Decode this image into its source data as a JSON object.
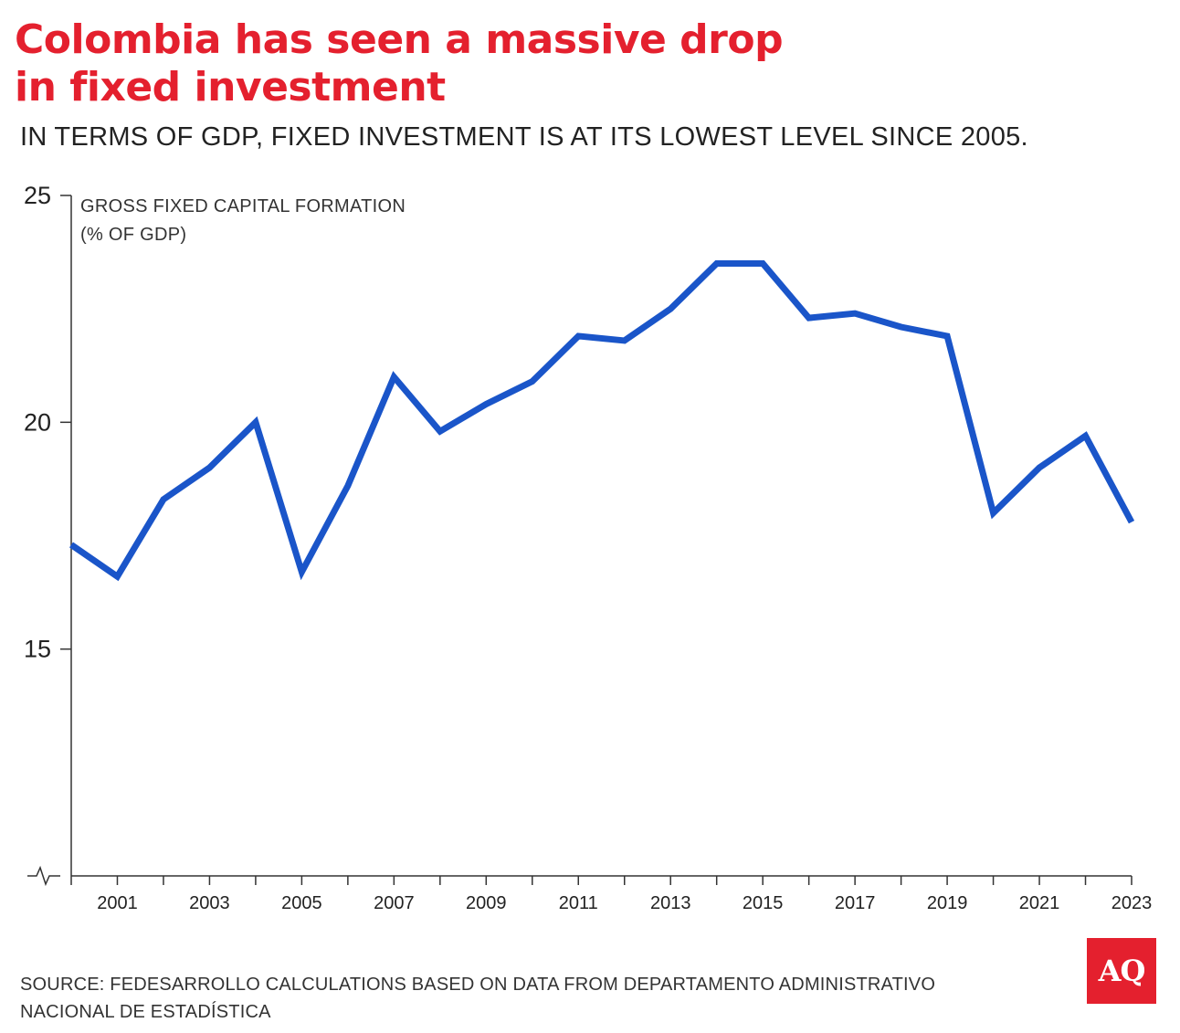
{
  "header": {
    "title_line1": "Colombia has seen a massive drop",
    "title_line2": "in fixed investment",
    "subtitle": "IN TERMS OF GDP, FIXED INVESTMENT IS AT ITS LOWEST LEVEL SINCE 2005."
  },
  "colors": {
    "title": "#e4202e",
    "line": "#1a55c9",
    "axis": "#333333",
    "logo_bg": "#e4202e"
  },
  "chart_data": {
    "type": "line",
    "title": "Colombia has seen a massive drop in fixed investment",
    "subtitle": "IN TERMS OF GDP, FIXED INVESTMENT IS AT ITS LOWEST LEVEL SINCE 2005.",
    "ylabel_line1": "GROSS FIXED CAPITAL FORMATION",
    "ylabel_line2": "(% OF GDP)",
    "xlabel": "",
    "x": [
      2000,
      2001,
      2002,
      2003,
      2004,
      2005,
      2006,
      2007,
      2008,
      2009,
      2010,
      2011,
      2012,
      2013,
      2014,
      2015,
      2016,
      2017,
      2018,
      2019,
      2020,
      2021,
      2022,
      2023
    ],
    "series": [
      {
        "name": "Gross fixed capital formation (% of GDP)",
        "values": [
          17.3,
          16.6,
          18.3,
          19.0,
          20.0,
          16.7,
          18.6,
          21.0,
          19.8,
          20.4,
          20.9,
          21.9,
          21.8,
          22.5,
          23.5,
          23.5,
          22.3,
          22.4,
          22.1,
          21.9,
          18.0,
          19.0,
          19.7,
          17.8
        ]
      }
    ],
    "ylim": [
      10,
      25
    ],
    "yticks": [
      15,
      20,
      25
    ],
    "ytick_labels": [
      "15",
      "20",
      "25"
    ],
    "xticks": [
      2001,
      2003,
      2005,
      2007,
      2009,
      2011,
      2013,
      2015,
      2017,
      2019,
      2021,
      2023
    ],
    "xtick_labels": [
      "2001",
      "2003",
      "2005",
      "2007",
      "2009",
      "2011",
      "2013",
      "2015",
      "2017",
      "2019",
      "2021",
      "2023"
    ],
    "axis_break": true,
    "grid": false
  },
  "footer": {
    "source_line1": "SOURCE: FEDESARROLLO CALCULATIONS BASED ON DATA FROM DEPARTAMENTO ADMINISTRATIVO",
    "source_line2": "NACIONAL DE ESTADÍSTICA",
    "logo_text": "AQ"
  }
}
